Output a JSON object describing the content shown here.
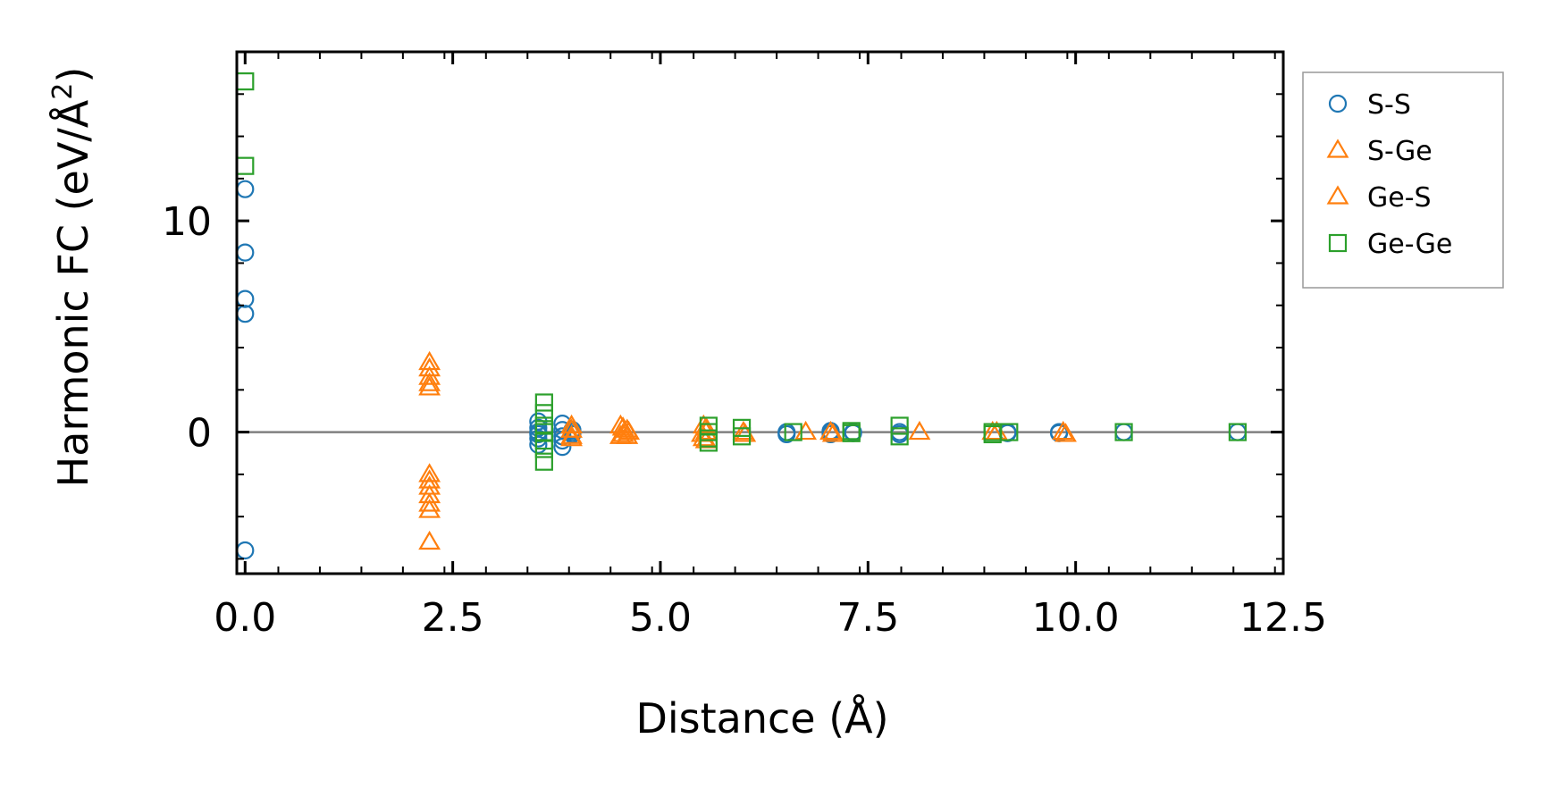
{
  "chart_data": {
    "type": "scatter",
    "title": "",
    "xlabel": "Distance (Å)",
    "ylabel_prefix": "Harmonic FC (eV/Å",
    "ylabel_exp": "2",
    "ylabel_suffix": ")",
    "xlim": [
      -0.1,
      12.5
    ],
    "ylim": [
      -6.7,
      18.0
    ],
    "x_ticks": [
      0.0,
      2.5,
      5.0,
      7.5,
      10.0,
      12.5
    ],
    "x_tick_labels": [
      "0.0",
      "2.5",
      "5.0",
      "7.5",
      "10.0",
      "12.5"
    ],
    "y_ticks": [
      0,
      10
    ],
    "y_tick_labels": [
      "0",
      "10"
    ],
    "reference_line_y": 0,
    "legend_position": "outside-right",
    "series": [
      {
        "name": "S-S",
        "marker": "circle",
        "color": "#1f77b4",
        "x": [
          0,
          0,
          0,
          0,
          0,
          3.53,
          3.53,
          3.53,
          3.53,
          3.53,
          3.53,
          3.82,
          3.82,
          3.82,
          3.82,
          3.82,
          3.94,
          3.94,
          3.94,
          6.52,
          6.52,
          7.05,
          7.05,
          7.05,
          7.32,
          7.32,
          7.88,
          7.88,
          9.18,
          9.18,
          9.8,
          9.8,
          10.58,
          11.95
        ],
        "y": [
          11.5,
          8.5,
          6.3,
          5.6,
          -5.6,
          0.5,
          0.2,
          0.0,
          -0.1,
          -0.3,
          -0.6,
          0.4,
          0.1,
          -0.2,
          -0.4,
          -0.7,
          0.0,
          -0.1,
          0.1,
          0.0,
          -0.1,
          0.0,
          0.05,
          -0.1,
          0.0,
          -0.05,
          0.0,
          -0.1,
          0.0,
          -0.05,
          0.0,
          -0.05,
          0.0,
          0.0
        ]
      },
      {
        "name": "S-Ge",
        "marker": "triangle",
        "color": "#ff7f0e",
        "x": [
          2.22,
          2.22,
          2.22,
          2.22,
          2.22,
          2.22,
          3.93,
          3.93,
          4.52,
          4.52,
          4.6,
          4.6,
          5.52,
          5.52,
          5.55,
          6.0,
          7.05,
          8.12,
          9.0,
          9.85
        ],
        "y": [
          3.3,
          2.6,
          2.1,
          -2.3,
          -3.0,
          -5.2,
          0.3,
          -0.3,
          0.3,
          -0.2,
          0.1,
          -0.2,
          0.3,
          -0.3,
          0.0,
          0.0,
          0.0,
          0.0,
          0.0,
          0.0
        ]
      },
      {
        "name": "Ge-S",
        "marker": "triangle",
        "color": "#ff7f0e",
        "x": [
          2.22,
          2.22,
          2.22,
          2.22,
          2.22,
          2.22,
          3.93,
          3.93,
          4.55,
          4.55,
          4.62,
          5.5,
          5.55,
          5.55,
          6.02,
          6.75,
          7.08,
          9.05,
          9.88
        ],
        "y": [
          3.0,
          2.3,
          -2.0,
          -2.6,
          -3.4,
          -3.7,
          0.1,
          -0.2,
          0.2,
          -0.1,
          0.0,
          -0.1,
          0.2,
          -0.4,
          -0.1,
          0.0,
          -0.1,
          0.0,
          -0.1
        ]
      },
      {
        "name": "Ge-Ge",
        "marker": "square",
        "color": "#2ca02c",
        "x": [
          0,
          0,
          3.6,
          3.6,
          3.6,
          3.6,
          3.6,
          3.6,
          3.6,
          5.58,
          5.58,
          5.58,
          5.58,
          5.98,
          5.98,
          6.6,
          7.3,
          7.3,
          7.88,
          7.88,
          9.0,
          9.0,
          9.2,
          10.58,
          11.95
        ],
        "y": [
          16.6,
          12.6,
          1.4,
          0.9,
          0.3,
          0.0,
          -0.4,
          -0.8,
          -1.4,
          0.3,
          0.0,
          -0.3,
          -0.5,
          0.2,
          -0.2,
          0.0,
          0.05,
          -0.05,
          0.3,
          -0.2,
          0.0,
          -0.1,
          0.0,
          0.0,
          0.0
        ]
      }
    ]
  }
}
